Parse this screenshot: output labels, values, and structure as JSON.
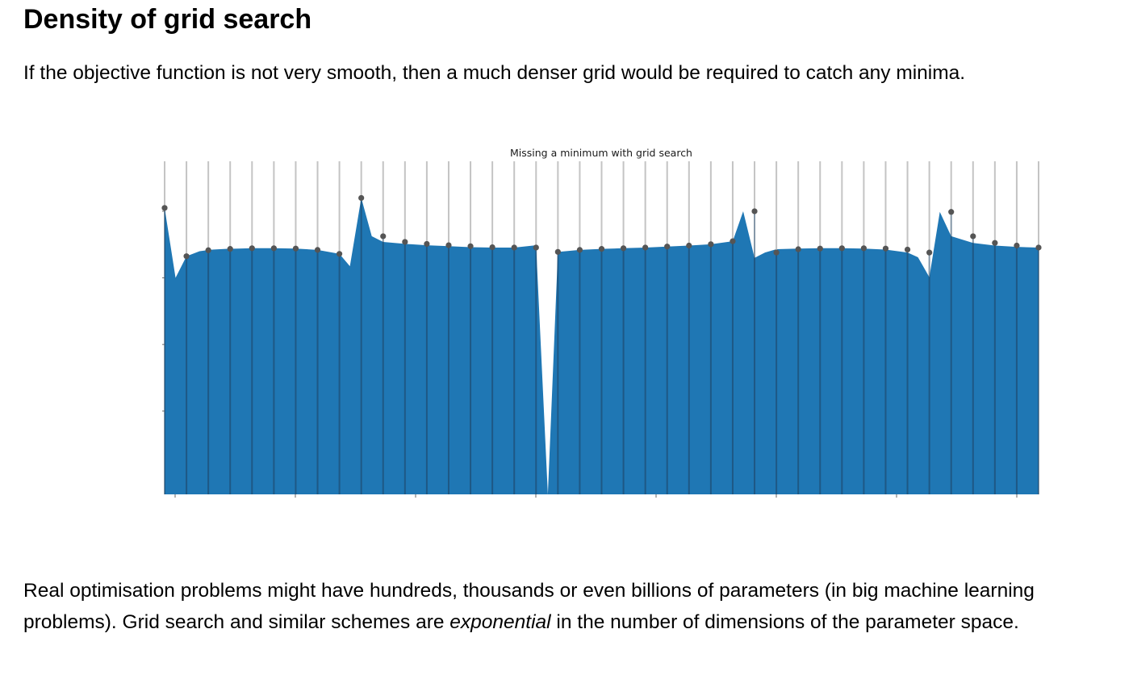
{
  "page": {
    "heading": "Density of grid search",
    "intro": "If the objective function is not very smooth, then a much denser grid would be required to catch any minima.",
    "paragraph": {
      "before": "Real optimisation problems might have hundreds, thousands or even billions of parameters (in big machine learning problems). Grid search and similar schemes are ",
      "emphasis": "exponential",
      "after": " in the number of dimensions of the parameter space."
    }
  },
  "chart_data": {
    "type": "area",
    "title": "Missing a minimum with grid search",
    "xlabel": "",
    "ylabel": "",
    "xlim": [
      0,
      1
    ],
    "ylim": [
      0,
      1
    ],
    "tick_labels_visible": false,
    "grid": false,
    "colors": {
      "fill": "#1f77b4",
      "grid_line": "#c4c4c4",
      "sample_point": "#555555"
    },
    "curve": {
      "x": [
        0.0,
        0.0125,
        0.025,
        0.04,
        0.055,
        0.07,
        0.085,
        0.1,
        0.125,
        0.15,
        0.175,
        0.2,
        0.212,
        0.225,
        0.237,
        0.25,
        0.275,
        0.3,
        0.325,
        0.35,
        0.375,
        0.4,
        0.425,
        0.4385,
        0.45,
        0.475,
        0.5,
        0.525,
        0.55,
        0.575,
        0.6,
        0.625,
        0.65,
        0.662,
        0.675,
        0.687,
        0.7,
        0.725,
        0.75,
        0.775,
        0.8,
        0.825,
        0.85,
        0.862,
        0.875,
        0.887,
        0.9,
        0.925,
        0.95,
        0.975,
        1.0
      ],
      "y": [
        0.86,
        0.65,
        0.715,
        0.73,
        0.735,
        0.737,
        0.738,
        0.739,
        0.739,
        0.738,
        0.734,
        0.722,
        0.685,
        0.89,
        0.775,
        0.758,
        0.752,
        0.748,
        0.745,
        0.742,
        0.741,
        0.741,
        0.748,
        0.0,
        0.728,
        0.734,
        0.737,
        0.739,
        0.741,
        0.744,
        0.747,
        0.751,
        0.76,
        0.85,
        0.71,
        0.726,
        0.736,
        0.738,
        0.739,
        0.739,
        0.738,
        0.735,
        0.726,
        0.712,
        0.652,
        0.848,
        0.775,
        0.755,
        0.747,
        0.743,
        0.741
      ]
    },
    "samples": {
      "x": [
        0.0,
        0.025,
        0.05,
        0.075,
        0.1,
        0.125,
        0.15,
        0.175,
        0.2,
        0.225,
        0.25,
        0.275,
        0.3,
        0.325,
        0.35,
        0.375,
        0.4,
        0.425,
        0.45,
        0.475,
        0.5,
        0.525,
        0.55,
        0.575,
        0.6,
        0.625,
        0.65,
        0.675,
        0.7,
        0.725,
        0.75,
        0.775,
        0.8,
        0.825,
        0.85,
        0.875,
        0.9,
        0.925,
        0.95,
        0.975,
        1.0
      ],
      "y": [
        0.86,
        0.715,
        0.733,
        0.737,
        0.739,
        0.739,
        0.738,
        0.734,
        0.722,
        0.89,
        0.775,
        0.758,
        0.752,
        0.748,
        0.745,
        0.742,
        0.741,
        0.741,
        0.728,
        0.734,
        0.737,
        0.739,
        0.741,
        0.744,
        0.747,
        0.751,
        0.76,
        0.85,
        0.726,
        0.736,
        0.738,
        0.739,
        0.739,
        0.738,
        0.735,
        0.726,
        0.848,
        0.775,
        0.755,
        0.747,
        0.741
      ]
    }
  }
}
